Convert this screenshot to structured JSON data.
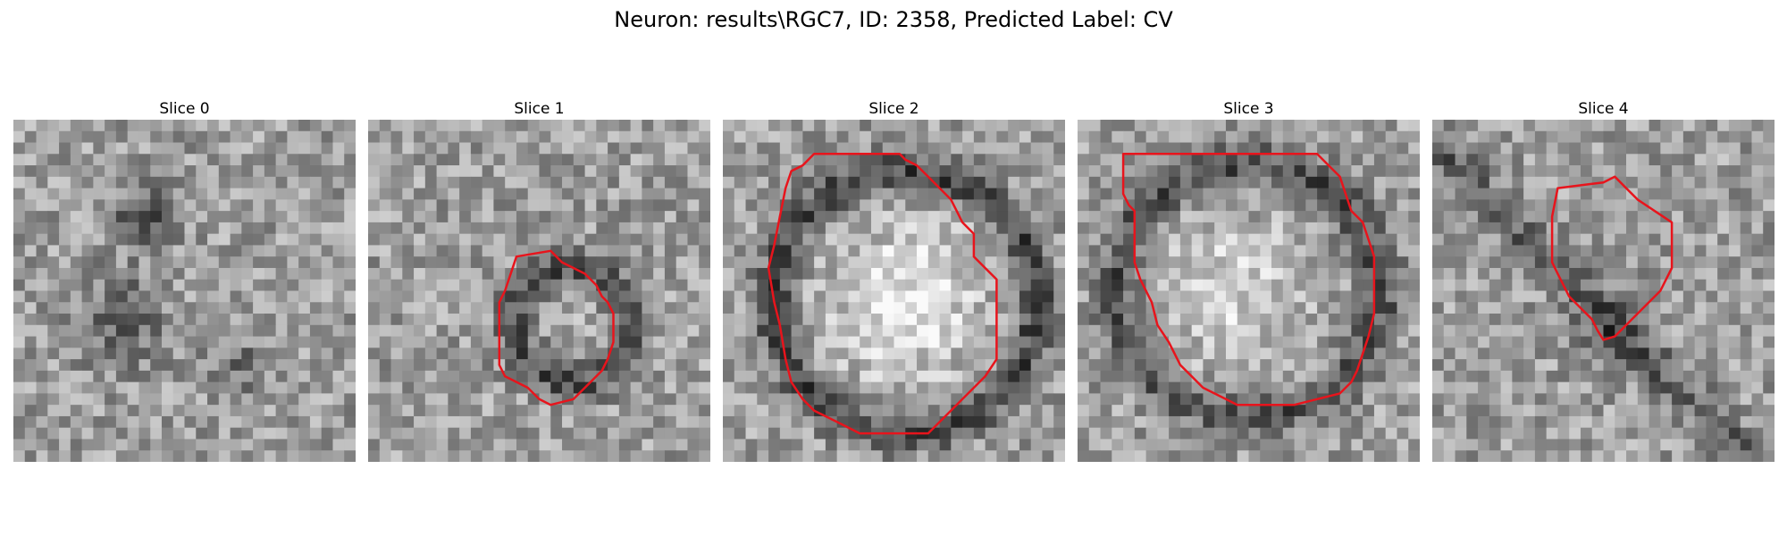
{
  "figure": {
    "title": "Neuron: results\\RGC7, ID: 2358, Predicted Label: CV"
  },
  "slices": [
    {
      "label": "Slice 0"
    },
    {
      "label": "Slice 1"
    },
    {
      "label": "Slice 2"
    },
    {
      "label": "Slice 3"
    },
    {
      "label": "Slice 4"
    }
  ],
  "colors": {
    "contour": "#e8141c",
    "background": "#ffffff"
  }
}
